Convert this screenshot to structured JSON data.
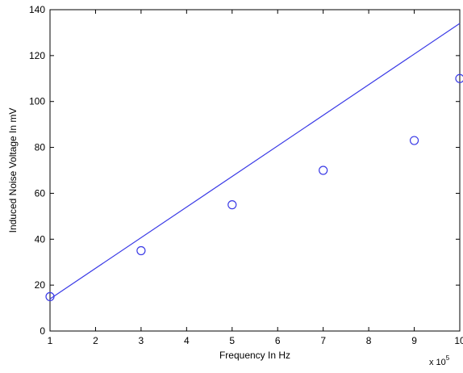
{
  "chart_data": {
    "type": "scatter",
    "title": "",
    "xlabel": "Frequency In Hz",
    "ylabel": "Induced Noise Voltage In mV",
    "x_multiplier_label": "x 10",
    "x_multiplier_exponent": "5",
    "xlim": [
      1,
      10
    ],
    "ylim": [
      0,
      140
    ],
    "x_ticks": [
      "1",
      "2",
      "3",
      "4",
      "5",
      "6",
      "7",
      "8",
      "9",
      "10"
    ],
    "y_ticks": [
      "0",
      "20",
      "40",
      "60",
      "80",
      "100",
      "120",
      "140"
    ],
    "grid": false,
    "series": [
      {
        "kind": "points",
        "marker": "circle",
        "x": [
          1,
          3,
          5,
          7,
          9,
          10
        ],
        "y": [
          15,
          35,
          55,
          70,
          83,
          110
        ]
      },
      {
        "kind": "line",
        "x": [
          1,
          10
        ],
        "y": [
          14,
          134
        ]
      }
    ],
    "colors": {
      "series": "#3a3ae6",
      "axes": "#000000"
    }
  }
}
